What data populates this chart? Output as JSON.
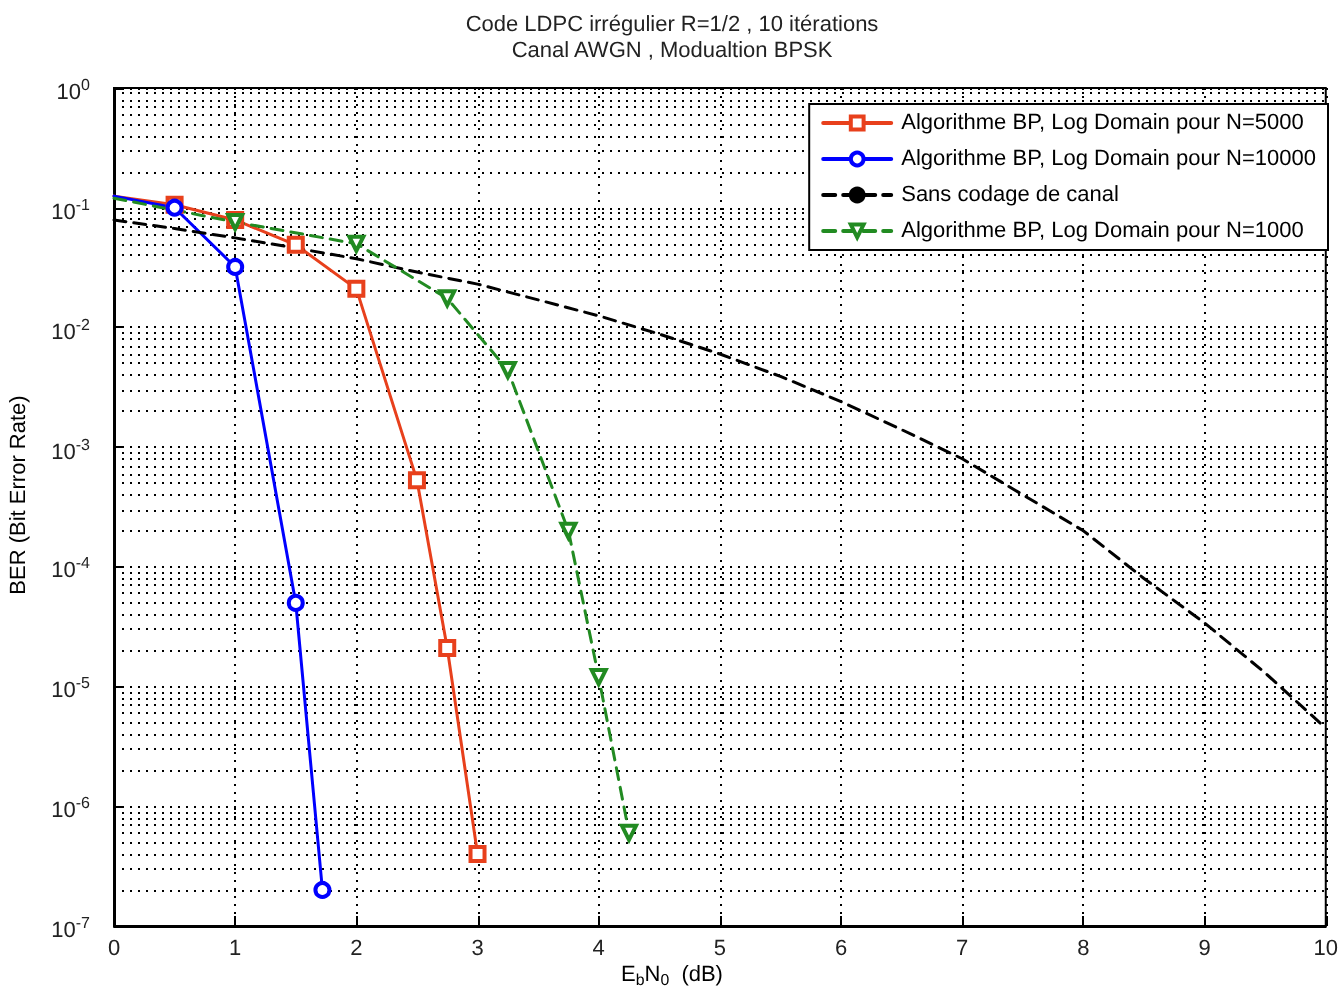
{
  "chart_data": {
    "type": "line",
    "title": "Code LDPC irrégulier R=1/2 , 10 itérations",
    "subtitle": "Canal AWGN , Modualtion BPSK",
    "xlabel": "E$_{b}$N$_{0}$  (dB)",
    "ylabel": "BER (Bit Error Rate)",
    "series": [
      {
        "name": "Algorithme BP, Log Domain pour N=5000",
        "color": "#e8401c",
        "marker": "square",
        "line_style": "solid",
        "x": [
          0,
          0.5,
          1,
          1.5,
          2,
          2.5,
          2.75,
          3
        ],
        "values": [
          0.125,
          0.106,
          0.079,
          0.049,
          0.021,
          0.00053,
          2.1e-05,
          4e-07
        ]
      },
      {
        "name": "Algorithme BP, Log Domain pour N=10000",
        "color": "#0000ff",
        "marker": "circle",
        "line_style": "solid",
        "x": [
          0,
          0.5,
          1,
          1.5,
          1.72
        ],
        "values": [
          0.125,
          0.1,
          0.032,
          5e-05,
          2e-07
        ]
      },
      {
        "name": "Sans codage de canal",
        "color": "#000000",
        "marker": "none",
        "line_style": "dashed",
        "x": [
          0,
          0.5,
          1,
          1.5,
          2,
          2.5,
          3,
          3.5,
          4,
          4.5,
          5,
          5.5,
          6,
          6.5,
          7,
          7.5,
          8,
          8.5,
          9,
          9.5,
          10
        ],
        "values": [
          0.079,
          0.067,
          0.056,
          0.046,
          0.0375,
          0.029,
          0.023,
          0.017,
          0.0125,
          0.0088,
          0.006,
          0.0039,
          0.0024,
          0.0014,
          0.0008,
          0.0004,
          0.0002,
          8e-05,
          3.4e-05,
          1.3e-05,
          4.5e-06
        ]
      },
      {
        "name": "Algorithme BP, Log Domain pour N=1000",
        "color": "#228b22",
        "marker": "triangle",
        "line_style": "dashed",
        "x": [
          0,
          1,
          2,
          2.75,
          3.25,
          3.75,
          4,
          4.25
        ],
        "values": [
          0.12,
          0.076,
          0.05,
          0.0175,
          0.0044,
          0.0002,
          1.2e-05,
          6e-07
        ]
      }
    ],
    "xlim": [
      0,
      10
    ],
    "xticks": [
      0,
      1,
      2,
      3,
      4,
      5,
      6,
      7,
      8,
      9,
      10
    ],
    "ylim": [
      1e-07,
      1
    ],
    "yticks": [
      {
        "value": 1e-07,
        "label": "10$^{-7}$"
      },
      {
        "value": 1e-06,
        "label": "10$^{-6}$"
      },
      {
        "value": 1e-05,
        "label": "10$^{-5}$"
      },
      {
        "value": 0.0001,
        "label": "10$^{-4}$"
      },
      {
        "value": 0.001,
        "label": "10$^{-3}$"
      },
      {
        "value": 0.01,
        "label": "10$^{-2}$"
      },
      {
        "value": 0.1,
        "label": "10$^{-1}$"
      },
      {
        "value": 1,
        "label": "10$^{0}$"
      }
    ],
    "log": "y",
    "grid": true,
    "legend": "top right"
  }
}
